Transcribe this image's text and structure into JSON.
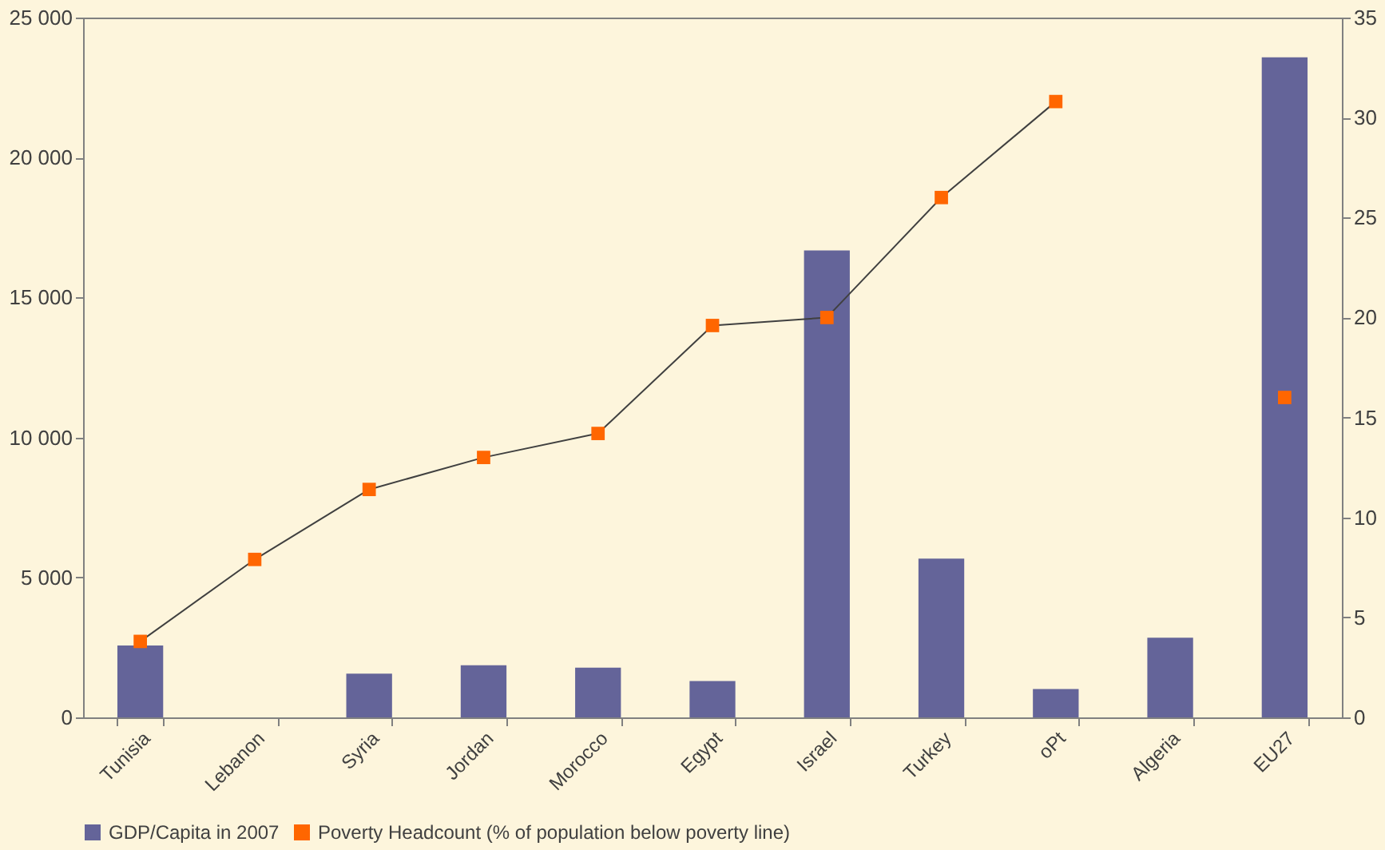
{
  "chart_data": {
    "type": "bar",
    "categories": [
      "Tunisia",
      "Lebanon",
      "Syria",
      "Jordan",
      "Morocco",
      "Egypt",
      "Israel",
      "Turkey",
      "oPt",
      "Algeria",
      "EU27"
    ],
    "series": [
      {
        "name": "GDP/Capita in 2007",
        "type": "bar",
        "color": "#646499",
        "values": [
          2570,
          null,
          1560,
          1860,
          1780,
          1300,
          16680,
          5670,
          1010,
          2850,
          23580
        ]
      },
      {
        "name": "Poverty Headcount (% of population below poverty line)",
        "type": "line",
        "axis": "y2",
        "color": "#ff6600",
        "marker": "square",
        "values": [
          3.8,
          7.9,
          11.4,
          13.0,
          14.2,
          19.6,
          20.0,
          26.0,
          30.8,
          null,
          16.0
        ]
      }
    ],
    "ylim": [
      0,
      25000
    ],
    "yticks": [
      {
        "value": 0,
        "label": "0"
      },
      {
        "value": 5000,
        "label": "5 000"
      },
      {
        "value": 10000,
        "label": "10 000"
      },
      {
        "value": 15000,
        "label": "15 000"
      },
      {
        "value": 20000,
        "label": "20 000"
      },
      {
        "value": 25000,
        "label": "25 000"
      }
    ],
    "y2lim": [
      0,
      35
    ],
    "y2ticks": [
      0,
      5,
      10,
      15,
      20,
      25,
      30,
      35
    ],
    "grid": false,
    "legend": "bottom"
  }
}
